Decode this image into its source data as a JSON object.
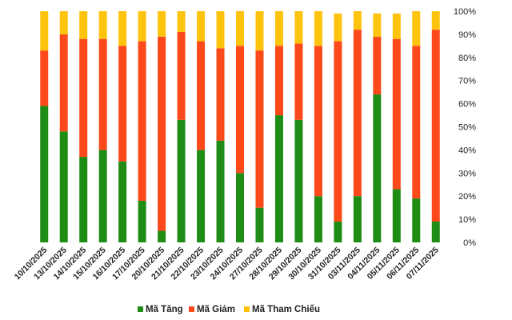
{
  "chart_data": {
    "type": "bar",
    "stacked": true,
    "categories": [
      "10/10/2025",
      "13/10/2025",
      "14/10/2025",
      "15/10/2025",
      "16/10/2025",
      "17/10/2025",
      "20/10/2025",
      "21/10/2025",
      "22/10/2025",
      "23/10/2025",
      "24/10/2025",
      "27/10/2025",
      "28/10/2025",
      "29/10/2025",
      "30/10/2025",
      "31/10/2025",
      "03/11/2025",
      "04/11/2025",
      "05/11/2025",
      "06/11/2025",
      "07/11/2025"
    ],
    "series": [
      {
        "name": "Mã Tăng",
        "color": "#1e8c15",
        "values": [
          59,
          48,
          37,
          40,
          35,
          18,
          5,
          53,
          40,
          44,
          30,
          15,
          55,
          53,
          20,
          9,
          20,
          64,
          23,
          19,
          9
        ]
      },
      {
        "name": "Mã Giảm",
        "color": "#fe4a1b",
        "values": [
          24,
          42,
          51,
          48,
          50,
          69,
          84,
          38,
          47,
          40,
          55,
          68,
          30,
          33,
          65,
          78,
          72,
          25,
          65,
          66,
          83
        ]
      },
      {
        "name": "Mã Tham Chiếu",
        "color": "#fec30d",
        "values": [
          17,
          10,
          12,
          12,
          15,
          13,
          11,
          9,
          13,
          16,
          15,
          17,
          15,
          14,
          15,
          12,
          8,
          10,
          11,
          15,
          8
        ]
      }
    ],
    "y_axis_position": "right",
    "ylim": [
      0,
      100
    ],
    "yticks": [
      "0%",
      "10%",
      "20%",
      "30%",
      "40%",
      "50%",
      "60%",
      "70%",
      "80%",
      "90%",
      "100%"
    ],
    "grid": false,
    "legend_position": "bottom"
  }
}
